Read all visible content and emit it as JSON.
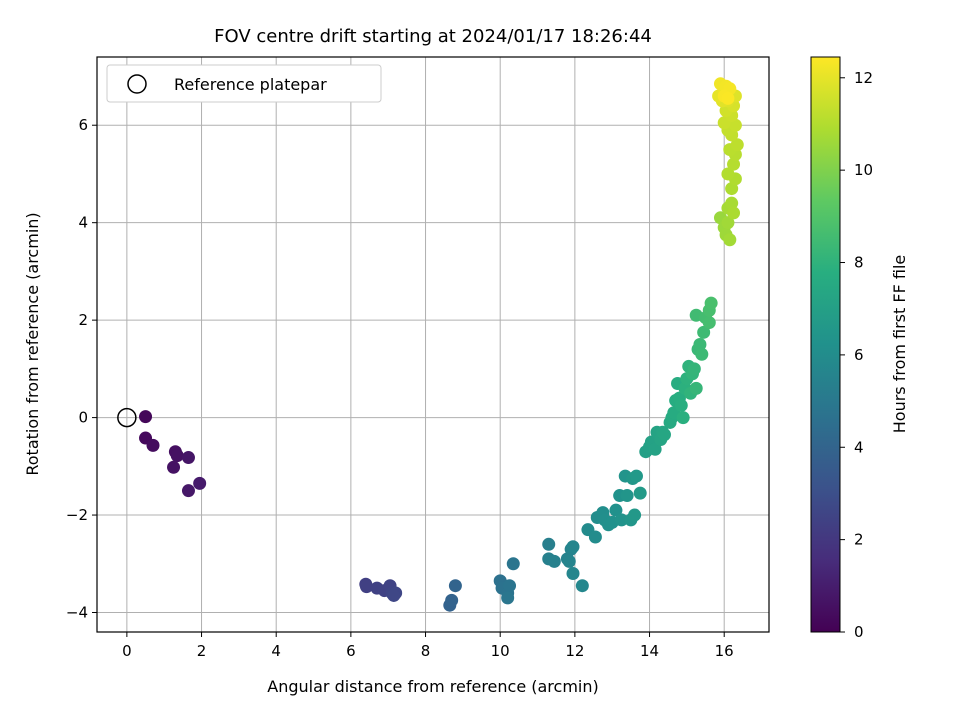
{
  "chart_data": {
    "type": "scatter",
    "title": "FOV centre drift starting at 2024/01/17 18:26:44",
    "xlabel": "Angular distance from reference (arcmin)",
    "ylabel": "Rotation from reference (arcmin)",
    "xlim": [
      -0.8,
      17.2
    ],
    "ylim": [
      -4.4,
      7.4
    ],
    "xticks": [
      0,
      2,
      4,
      6,
      8,
      10,
      12,
      14,
      16
    ],
    "yticks": [
      -4,
      -2,
      0,
      2,
      4,
      6
    ],
    "grid": true,
    "legend": {
      "position": "top-left",
      "entries": [
        {
          "label": "Reference platepar",
          "marker": "open-circle"
        }
      ]
    },
    "reference_point": {
      "x": 0,
      "y": 0
    },
    "colorbar": {
      "label": "Hours from first FF file",
      "range": [
        0,
        12.45
      ],
      "ticks": [
        0,
        2,
        4,
        6,
        8,
        10,
        12
      ],
      "colormap": "viridis"
    },
    "points": [
      [
        0.5,
        0.02,
        0.2
      ],
      [
        0.5,
        -0.42,
        0.3
      ],
      [
        0.7,
        -0.57,
        0.4
      ],
      [
        1.3,
        -0.7,
        0.5
      ],
      [
        1.35,
        -0.78,
        0.55
      ],
      [
        1.25,
        -1.02,
        0.6
      ],
      [
        1.65,
        -0.82,
        0.7
      ],
      [
        1.65,
        -1.5,
        0.8
      ],
      [
        1.95,
        -1.35,
        0.9
      ],
      [
        6.4,
        -3.42,
        2.3
      ],
      [
        6.42,
        -3.47,
        2.35
      ],
      [
        6.7,
        -3.5,
        2.4
      ],
      [
        6.9,
        -3.55,
        2.45
      ],
      [
        7.05,
        -3.45,
        2.5
      ],
      [
        7.1,
        -3.6,
        2.55
      ],
      [
        7.2,
        -3.6,
        2.6
      ],
      [
        7.15,
        -3.65,
        2.65
      ],
      [
        8.65,
        -3.85,
        3.9
      ],
      [
        8.7,
        -3.75,
        3.95
      ],
      [
        8.8,
        -3.45,
        4.0
      ],
      [
        10.0,
        -3.35,
        4.6
      ],
      [
        10.05,
        -3.5,
        4.65
      ],
      [
        10.2,
        -3.6,
        4.7
      ],
      [
        10.25,
        -3.45,
        4.75
      ],
      [
        10.35,
        -3.0,
        4.8
      ],
      [
        10.2,
        -3.7,
        4.85
      ],
      [
        11.3,
        -2.6,
        5.3
      ],
      [
        11.3,
        -2.9,
        5.35
      ],
      [
        11.45,
        -2.95,
        5.4
      ],
      [
        11.8,
        -2.9,
        5.45
      ],
      [
        11.9,
        -2.7,
        5.5
      ],
      [
        11.85,
        -2.95,
        5.55
      ],
      [
        11.95,
        -2.65,
        5.6
      ],
      [
        11.95,
        -3.2,
        5.65
      ],
      [
        12.2,
        -3.45,
        5.7
      ],
      [
        12.35,
        -2.3,
        5.9
      ],
      [
        12.55,
        -2.45,
        5.95
      ],
      [
        12.6,
        -2.05,
        6.0
      ],
      [
        12.75,
        -1.95,
        6.05
      ],
      [
        12.8,
        -2.1,
        6.1
      ],
      [
        12.9,
        -2.2,
        6.15
      ],
      [
        13.0,
        -2.15,
        6.2
      ],
      [
        13.1,
        -1.9,
        6.25
      ],
      [
        13.2,
        -1.6,
        6.3
      ],
      [
        13.25,
        -2.1,
        6.35
      ],
      [
        13.35,
        -1.2,
        6.4
      ],
      [
        13.4,
        -1.6,
        6.45
      ],
      [
        13.5,
        -2.1,
        6.5
      ],
      [
        13.55,
        -1.25,
        6.55
      ],
      [
        13.6,
        -2.0,
        6.6
      ],
      [
        13.65,
        -1.2,
        6.65
      ],
      [
        13.75,
        -1.55,
        6.7
      ],
      [
        13.9,
        -0.7,
        7.0
      ],
      [
        14.0,
        -0.6,
        7.05
      ],
      [
        14.05,
        -0.5,
        7.1
      ],
      [
        14.15,
        -0.65,
        7.15
      ],
      [
        14.2,
        -0.3,
        7.2
      ],
      [
        14.3,
        -0.45,
        7.25
      ],
      [
        14.35,
        -0.3,
        7.3
      ],
      [
        14.4,
        -0.35,
        7.35
      ],
      [
        14.55,
        -0.1,
        7.5
      ],
      [
        14.6,
        0.0,
        7.55
      ],
      [
        14.65,
        0.1,
        7.6
      ],
      [
        14.7,
        0.35,
        7.65
      ],
      [
        14.75,
        0.7,
        7.7
      ],
      [
        14.8,
        0.4,
        7.75
      ],
      [
        14.85,
        0.25,
        7.8
      ],
      [
        14.9,
        0.0,
        7.85
      ],
      [
        14.95,
        0.6,
        7.9
      ],
      [
        15.0,
        0.8,
        7.95
      ],
      [
        15.05,
        1.05,
        8.0
      ],
      [
        15.1,
        0.5,
        8.05
      ],
      [
        15.15,
        0.9,
        8.1
      ],
      [
        15.2,
        1.0,
        8.15
      ],
      [
        15.25,
        0.6,
        8.2
      ],
      [
        15.3,
        1.4,
        8.3
      ],
      [
        15.35,
        1.5,
        8.35
      ],
      [
        15.4,
        1.3,
        8.4
      ],
      [
        15.45,
        1.75,
        8.45
      ],
      [
        15.25,
        2.1,
        8.5
      ],
      [
        15.5,
        2.05,
        8.6
      ],
      [
        15.6,
        1.95,
        8.65
      ],
      [
        15.6,
        2.2,
        8.7
      ],
      [
        15.65,
        2.35,
        8.75
      ],
      [
        15.9,
        4.1,
        10.5
      ],
      [
        16.0,
        3.9,
        10.55
      ],
      [
        16.05,
        3.75,
        10.6
      ],
      [
        16.1,
        4.0,
        10.65
      ],
      [
        16.15,
        3.65,
        10.7
      ],
      [
        16.1,
        4.3,
        10.75
      ],
      [
        16.2,
        4.4,
        10.8
      ],
      [
        16.25,
        4.2,
        10.85
      ],
      [
        16.2,
        4.7,
        10.9
      ],
      [
        16.3,
        4.9,
        10.95
      ],
      [
        16.1,
        5.0,
        11.0
      ],
      [
        16.25,
        5.2,
        11.05
      ],
      [
        16.3,
        5.4,
        11.1
      ],
      [
        16.15,
        5.5,
        11.15
      ],
      [
        16.35,
        5.6,
        11.2
      ],
      [
        16.2,
        5.8,
        11.3
      ],
      [
        16.1,
        5.9,
        11.35
      ],
      [
        16.3,
        6.0,
        11.4
      ],
      [
        16.0,
        6.05,
        11.45
      ],
      [
        16.2,
        6.2,
        11.5
      ],
      [
        16.05,
        6.3,
        11.6
      ],
      [
        16.25,
        6.4,
        11.7
      ],
      [
        16.1,
        6.5,
        11.8
      ],
      [
        16.3,
        6.6,
        11.85
      ],
      [
        15.95,
        6.5,
        11.9
      ],
      [
        15.85,
        6.6,
        12.0
      ],
      [
        16.0,
        6.7,
        12.1
      ],
      [
        15.9,
        6.85,
        12.2
      ],
      [
        16.05,
        6.8,
        12.25
      ],
      [
        16.15,
        6.75,
        12.3
      ],
      [
        16.0,
        6.6,
        12.35
      ],
      [
        16.1,
        6.55,
        12.4
      ]
    ]
  }
}
